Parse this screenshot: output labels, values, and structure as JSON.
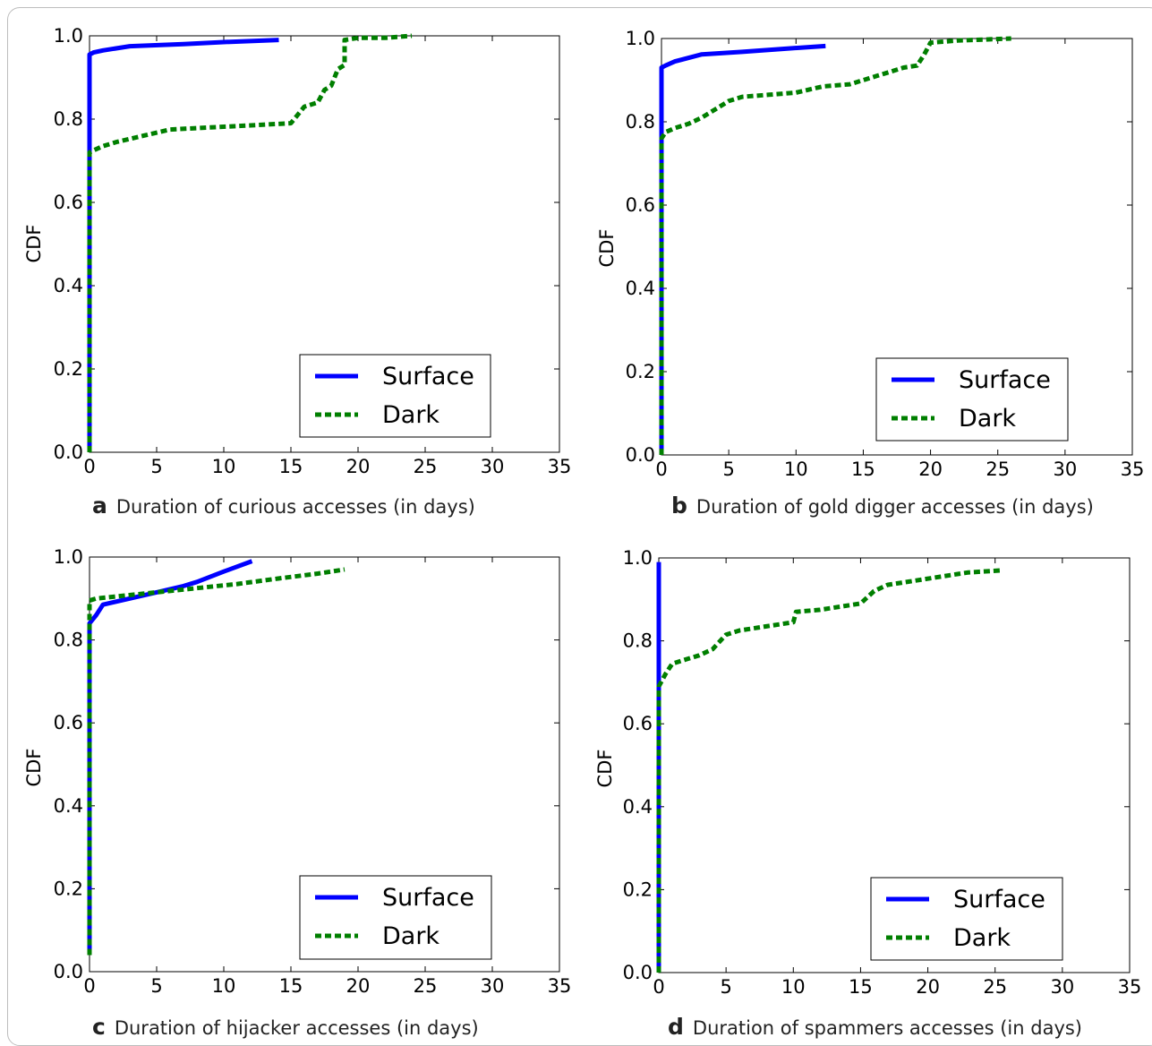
{
  "figure": {
    "panels": [
      {
        "letter": "a",
        "caption": "Duration of curious accesses (in days)"
      },
      {
        "letter": "b",
        "caption": "Duration of gold digger accesses (in days)"
      },
      {
        "letter": "c",
        "caption": "Duration of hijacker accesses (in days)"
      },
      {
        "letter": "d",
        "caption": "Duration of spammers accesses (in days)"
      }
    ]
  },
  "colors": {
    "surface": "#0000ff",
    "dark": "#007f00",
    "axis": "#000000"
  },
  "chart_data": [
    {
      "type": "line",
      "xlabel": "",
      "ylabel": "CDF",
      "xlim": [
        0,
        35
      ],
      "ylim": [
        0,
        1.0
      ],
      "xticks": [
        "0",
        "5",
        "10",
        "15",
        "20",
        "25",
        "30",
        "35"
      ],
      "yticks": [
        "0.0",
        "0.2",
        "0.4",
        "0.6",
        "0.8",
        "1.0"
      ],
      "legend_placement": "bottom-right",
      "series": [
        {
          "name": "Surface",
          "style": "solid",
          "x": [
            0,
            0,
            0.3,
            1,
            3,
            7,
            10,
            14.1
          ],
          "y": [
            0,
            0.955,
            0.96,
            0.965,
            0.975,
            0.98,
            0.985,
            0.99
          ]
        },
        {
          "name": "Dark",
          "style": "dotted",
          "x": [
            0,
            0,
            0.3,
            1,
            2,
            4,
            6,
            9,
            12,
            15,
            16,
            17,
            17.5,
            18,
            18.5,
            19,
            19,
            20,
            22,
            24
          ],
          "y": [
            0,
            0.72,
            0.725,
            0.735,
            0.745,
            0.76,
            0.775,
            0.78,
            0.785,
            0.79,
            0.83,
            0.84,
            0.87,
            0.88,
            0.92,
            0.93,
            0.99,
            0.995,
            0.995,
            1.0
          ]
        }
      ]
    },
    {
      "type": "line",
      "xlabel": "",
      "ylabel": "CDF",
      "xlim": [
        0,
        35
      ],
      "ylim": [
        0,
        1.0
      ],
      "xticks": [
        "0",
        "5",
        "10",
        "15",
        "20",
        "25",
        "30",
        "35"
      ],
      "yticks": [
        "0.0",
        "0.2",
        "0.4",
        "0.6",
        "0.8",
        "1.0"
      ],
      "legend_placement": "bottom-right",
      "series": [
        {
          "name": "Surface",
          "style": "solid",
          "x": [
            0,
            0,
            0.3,
            1,
            3,
            6,
            9,
            12.2
          ],
          "y": [
            0,
            0.93,
            0.935,
            0.945,
            0.962,
            0.968,
            0.975,
            0.982
          ]
        },
        {
          "name": "Dark",
          "style": "dotted",
          "x": [
            0,
            0,
            0.3,
            1,
            2,
            3,
            4,
            5,
            6,
            8,
            10,
            12,
            14,
            15,
            16,
            17,
            18,
            19,
            19.5,
            20,
            22,
            26
          ],
          "y": [
            0,
            0.76,
            0.775,
            0.785,
            0.795,
            0.81,
            0.83,
            0.85,
            0.86,
            0.865,
            0.87,
            0.885,
            0.89,
            0.9,
            0.91,
            0.92,
            0.93,
            0.935,
            0.96,
            0.99,
            0.995,
            1.0
          ]
        }
      ]
    },
    {
      "type": "line",
      "xlabel": "",
      "ylabel": "CDF",
      "xlim": [
        0,
        35
      ],
      "ylim": [
        0,
        1.0
      ],
      "xticks": [
        "0",
        "5",
        "10",
        "15",
        "20",
        "25",
        "30",
        "35"
      ],
      "yticks": [
        "0.0",
        "0.2",
        "0.4",
        "0.6",
        "0.8",
        "1.0"
      ],
      "legend_placement": "bottom-right",
      "series": [
        {
          "name": "Surface",
          "style": "solid",
          "x": [
            0,
            0,
            0.5,
            1,
            3,
            5,
            7,
            8,
            10,
            12.1
          ],
          "y": [
            0.04,
            0.84,
            0.86,
            0.885,
            0.9,
            0.915,
            0.93,
            0.94,
            0.965,
            0.99
          ]
        },
        {
          "name": "Dark",
          "style": "dotted",
          "x": [
            0,
            0,
            0.5,
            2,
            5,
            8,
            11,
            14,
            17,
            19
          ],
          "y": [
            0.04,
            0.895,
            0.9,
            0.905,
            0.915,
            0.925,
            0.935,
            0.948,
            0.96,
            0.97
          ]
        }
      ]
    },
    {
      "type": "line",
      "xlabel": "",
      "ylabel": "CDF",
      "xlim": [
        0,
        35
      ],
      "ylim": [
        0,
        1.0
      ],
      "xticks": [
        "0",
        "5",
        "10",
        "15",
        "20",
        "25",
        "30",
        "35"
      ],
      "yticks": [
        "0.0",
        "0.2",
        "0.4",
        "0.6",
        "0.8",
        "1.0"
      ],
      "legend_placement": "bottom-right",
      "series": [
        {
          "name": "Surface",
          "style": "solid",
          "x": [
            0,
            0
          ],
          "y": [
            0,
            0.99
          ]
        },
        {
          "name": "Dark",
          "style": "dotted",
          "x": [
            0,
            0,
            0.5,
            1,
            2,
            3,
            4,
            5,
            6,
            8,
            10,
            10.2,
            12,
            15,
            16,
            17,
            19,
            21,
            23,
            25.5
          ],
          "y": [
            0,
            0.69,
            0.72,
            0.745,
            0.755,
            0.765,
            0.78,
            0.815,
            0.825,
            0.835,
            0.845,
            0.87,
            0.875,
            0.89,
            0.92,
            0.935,
            0.945,
            0.955,
            0.965,
            0.97
          ]
        }
      ]
    }
  ]
}
